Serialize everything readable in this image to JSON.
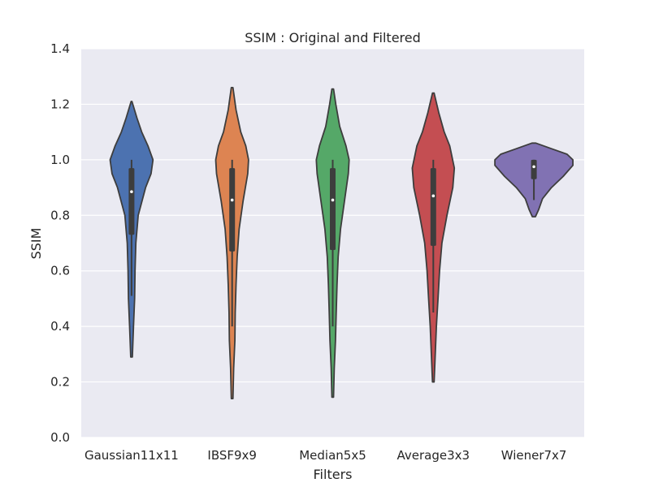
{
  "chart_data": {
    "type": "violin",
    "title": "SSIM :  Original and Filtered",
    "xlabel": "Filters",
    "ylabel": "SSIM",
    "ylim": [
      0.0,
      1.4
    ],
    "yticks": [
      "0.0",
      "0.2",
      "0.4",
      "0.6",
      "0.8",
      "1.0",
      "1.2",
      "1.4"
    ],
    "grid": true,
    "categories": [
      "Gaussian11x11",
      "IBSF9x9",
      "Median5x5",
      "Average3x3",
      "Wiener7x7"
    ],
    "series": [
      {
        "color": "#4c72b0",
        "min": 0.29,
        "max": 1.21,
        "q1": 0.73,
        "median": 0.885,
        "q3": 0.97,
        "whisker_low": 0.51,
        "whisker_high": 1.0,
        "profile": [
          [
            0.29,
            0.02
          ],
          [
            0.4,
            0.05
          ],
          [
            0.5,
            0.08
          ],
          [
            0.6,
            0.09
          ],
          [
            0.7,
            0.11
          ],
          [
            0.8,
            0.17
          ],
          [
            0.9,
            0.36
          ],
          [
            0.95,
            0.5
          ],
          [
            1.0,
            0.55
          ],
          [
            1.05,
            0.42
          ],
          [
            1.1,
            0.26
          ],
          [
            1.15,
            0.14
          ],
          [
            1.21,
            0.01
          ]
        ]
      },
      {
        "color": "#dd8452",
        "min": 0.14,
        "max": 1.26,
        "q1": 0.67,
        "median": 0.855,
        "q3": 0.97,
        "whisker_low": 0.4,
        "whisker_high": 1.0,
        "profile": [
          [
            0.14,
            0.02
          ],
          [
            0.25,
            0.04
          ],
          [
            0.35,
            0.07
          ],
          [
            0.45,
            0.08
          ],
          [
            0.55,
            0.1
          ],
          [
            0.65,
            0.13
          ],
          [
            0.75,
            0.18
          ],
          [
            0.85,
            0.28
          ],
          [
            0.95,
            0.4
          ],
          [
            1.0,
            0.42
          ],
          [
            1.05,
            0.35
          ],
          [
            1.1,
            0.22
          ],
          [
            1.18,
            0.1
          ],
          [
            1.26,
            0.02
          ]
        ]
      },
      {
        "color": "#55a868",
        "min": 0.145,
        "max": 1.255,
        "q1": 0.675,
        "median": 0.855,
        "q3": 0.97,
        "whisker_low": 0.4,
        "whisker_high": 1.0,
        "profile": [
          [
            0.145,
            0.02
          ],
          [
            0.25,
            0.04
          ],
          [
            0.35,
            0.07
          ],
          [
            0.45,
            0.09
          ],
          [
            0.55,
            0.11
          ],
          [
            0.65,
            0.14
          ],
          [
            0.75,
            0.2
          ],
          [
            0.85,
            0.3
          ],
          [
            0.95,
            0.4
          ],
          [
            1.0,
            0.42
          ],
          [
            1.05,
            0.34
          ],
          [
            1.12,
            0.18
          ],
          [
            1.2,
            0.08
          ],
          [
            1.255,
            0.02
          ]
        ]
      },
      {
        "color": "#c44e52",
        "min": 0.2,
        "max": 1.24,
        "q1": 0.69,
        "median": 0.87,
        "q3": 0.97,
        "whisker_low": 0.45,
        "whisker_high": 1.0,
        "profile": [
          [
            0.2,
            0.02
          ],
          [
            0.3,
            0.05
          ],
          [
            0.4,
            0.08
          ],
          [
            0.5,
            0.12
          ],
          [
            0.6,
            0.16
          ],
          [
            0.7,
            0.22
          ],
          [
            0.8,
            0.35
          ],
          [
            0.9,
            0.5
          ],
          [
            0.97,
            0.54
          ],
          [
            1.05,
            0.42
          ],
          [
            1.1,
            0.28
          ],
          [
            1.17,
            0.14
          ],
          [
            1.24,
            0.02
          ]
        ]
      },
      {
        "color": "#8172b3",
        "min": 0.795,
        "max": 1.06,
        "q1": 0.93,
        "median": 0.975,
        "q3": 1.0,
        "whisker_low": 0.855,
        "whisker_high": 1.0,
        "profile": [
          [
            0.795,
            0.04
          ],
          [
            0.82,
            0.12
          ],
          [
            0.86,
            0.22
          ],
          [
            0.9,
            0.45
          ],
          [
            0.94,
            0.75
          ],
          [
            0.98,
            1.0
          ],
          [
            1.0,
            1.0
          ],
          [
            1.02,
            0.85
          ],
          [
            1.04,
            0.45
          ],
          [
            1.06,
            0.05
          ]
        ]
      }
    ]
  }
}
